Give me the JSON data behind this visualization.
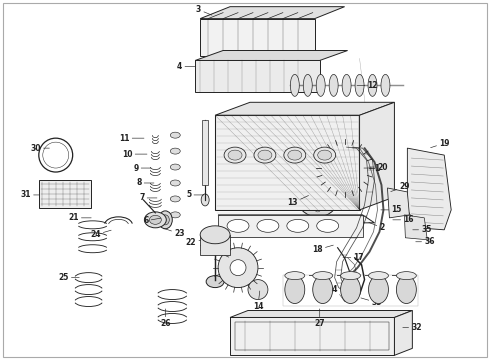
{
  "background_color": "#ffffff",
  "fig_width": 4.9,
  "fig_height": 3.6,
  "dpi": 100,
  "line_color": "#222222",
  "label_color": "#111111",
  "label_fontsize": 5.5,
  "lw": 0.7
}
